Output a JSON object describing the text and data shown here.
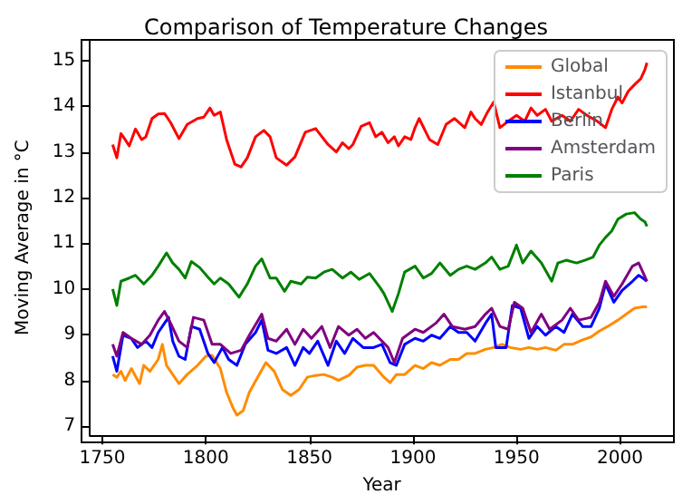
{
  "chart_data": {
    "type": "line",
    "title": "Comparison of Temperature Changes",
    "xlabel": "Year",
    "ylabel": "Moving Average in °C",
    "xlim": [
      1744,
      2026
    ],
    "xticks": [
      1750,
      1800,
      1850,
      1900,
      1950,
      2000
    ],
    "ylim": [
      6.8,
      15.45
    ],
    "yticks": [
      7,
      8,
      9,
      10,
      11,
      12,
      13,
      14,
      15
    ],
    "grid": false,
    "legend": "top right",
    "marker": "none",
    "line_style": "solid",
    "series": [
      {
        "name": "Global",
        "color": "#ff8c00",
        "x": [
          1755,
          1757,
          1759,
          1761,
          1764,
          1768,
          1770,
          1773,
          1777,
          1779,
          1781,
          1784,
          1787,
          1791,
          1796,
          1800,
          1803,
          1807,
          1810,
          1813,
          1815,
          1818,
          1821,
          1825,
          1829,
          1833,
          1837,
          1841,
          1845,
          1849,
          1853,
          1857,
          1861,
          1864,
          1869,
          1873,
          1877,
          1881,
          1886,
          1889,
          1892,
          1896,
          1901,
          1905,
          1909,
          1913,
          1918,
          1922,
          1926,
          1930,
          1935,
          1939,
          1943,
          1947,
          1952,
          1956,
          1960,
          1964,
          1969,
          1973,
          1977,
          1982,
          1986,
          1990,
          1994,
          1999,
          2003,
          2007,
          2011,
          2013
        ],
        "values": [
          8.13,
          8.07,
          8.2,
          8.0,
          8.26,
          7.93,
          8.33,
          8.2,
          8.46,
          8.79,
          8.33,
          8.13,
          7.93,
          8.13,
          8.33,
          8.53,
          8.55,
          8.26,
          7.74,
          7.41,
          7.24,
          7.34,
          7.74,
          8.07,
          8.39,
          8.2,
          7.8,
          7.67,
          7.8,
          8.07,
          8.11,
          8.13,
          8.07,
          8.0,
          8.11,
          8.29,
          8.33,
          8.33,
          8.07,
          7.95,
          8.13,
          8.13,
          8.33,
          8.26,
          8.39,
          8.33,
          8.46,
          8.46,
          8.59,
          8.59,
          8.68,
          8.72,
          8.79,
          8.72,
          8.68,
          8.72,
          8.68,
          8.72,
          8.66,
          8.79,
          8.79,
          8.89,
          8.95,
          9.08,
          9.18,
          9.32,
          9.45,
          9.58,
          9.61,
          9.61
        ]
      },
      {
        "name": "Istanbul",
        "color": "#ff0000",
        "x": [
          1755,
          1757,
          1759,
          1761,
          1763,
          1766,
          1769,
          1771,
          1774,
          1777,
          1780,
          1783,
          1787,
          1791,
          1796,
          1799,
          1802,
          1804,
          1807,
          1810,
          1814,
          1817,
          1820,
          1824,
          1828,
          1831,
          1834,
          1839,
          1843,
          1848,
          1853,
          1859,
          1863,
          1866,
          1869,
          1871,
          1875,
          1879,
          1882,
          1885,
          1888,
          1891,
          1893,
          1896,
          1899,
          1901,
          1903,
          1908,
          1912,
          1916,
          1920,
          1925,
          1928,
          1930,
          1933,
          1936,
          1939,
          1942,
          1946,
          1950,
          1954,
          1957,
          1960,
          1964,
          1967,
          1972,
          1976,
          1980,
          1984,
          1989,
          1993,
          1996,
          1999,
          2001,
          2004,
          2007,
          2010,
          2012,
          2013
        ],
        "values": [
          13.16,
          12.87,
          13.4,
          13.27,
          13.13,
          13.5,
          13.27,
          13.33,
          13.73,
          13.83,
          13.84,
          13.64,
          13.29,
          13.6,
          13.73,
          13.76,
          13.96,
          13.8,
          13.87,
          13.27,
          12.73,
          12.67,
          12.87,
          13.33,
          13.47,
          13.33,
          12.87,
          12.71,
          12.89,
          13.43,
          13.51,
          13.16,
          13.0,
          13.2,
          13.07,
          13.16,
          13.56,
          13.64,
          13.33,
          13.43,
          13.2,
          13.33,
          13.13,
          13.33,
          13.27,
          13.53,
          13.73,
          13.27,
          13.16,
          13.6,
          13.73,
          13.53,
          13.87,
          13.73,
          13.6,
          13.87,
          14.09,
          13.53,
          13.67,
          13.8,
          13.67,
          13.96,
          13.8,
          13.93,
          13.67,
          13.8,
          13.67,
          13.93,
          13.8,
          13.67,
          13.53,
          13.93,
          14.2,
          14.07,
          14.33,
          14.47,
          14.6,
          14.8,
          14.95
        ]
      },
      {
        "name": "Berlin",
        "color": "#0000ff",
        "x": [
          1755,
          1757,
          1760,
          1764,
          1767,
          1771,
          1774,
          1777,
          1780,
          1782,
          1784,
          1787,
          1790,
          1793,
          1797,
          1801,
          1804,
          1808,
          1811,
          1815,
          1819,
          1824,
          1827,
          1830,
          1834,
          1839,
          1843,
          1847,
          1850,
          1854,
          1859,
          1863,
          1867,
          1871,
          1876,
          1881,
          1885,
          1889,
          1892,
          1896,
          1901,
          1905,
          1909,
          1913,
          1918,
          1922,
          1926,
          1930,
          1935,
          1938,
          1940,
          1945,
          1948,
          1952,
          1956,
          1960,
          1964,
          1969,
          1973,
          1977,
          1982,
          1986,
          1990,
          1993,
          1997,
          2001,
          2006,
          2009,
          2011,
          2013
        ],
        "values": [
          8.53,
          8.2,
          8.99,
          8.92,
          8.72,
          8.86,
          8.72,
          9.05,
          9.25,
          9.38,
          8.86,
          8.53,
          8.46,
          9.18,
          9.12,
          8.59,
          8.39,
          8.72,
          8.46,
          8.33,
          8.79,
          9.05,
          9.32,
          8.66,
          8.59,
          8.72,
          8.33,
          8.72,
          8.59,
          8.86,
          8.33,
          8.86,
          8.59,
          8.92,
          8.72,
          8.72,
          8.79,
          8.39,
          8.33,
          8.79,
          8.92,
          8.86,
          8.99,
          8.92,
          9.18,
          9.05,
          9.05,
          8.86,
          9.25,
          9.45,
          8.72,
          8.72,
          9.64,
          9.58,
          8.92,
          9.18,
          8.99,
          9.18,
          9.05,
          9.45,
          9.18,
          9.18,
          9.58,
          10.11,
          9.71,
          9.97,
          10.17,
          10.3,
          10.24,
          10.17
        ]
      },
      {
        "name": "Amsterdam",
        "color": "#800080",
        "x": [
          1755,
          1757,
          1760,
          1764,
          1769,
          1773,
          1777,
          1780,
          1783,
          1787,
          1791,
          1794,
          1799,
          1803,
          1807,
          1812,
          1817,
          1821,
          1827,
          1830,
          1834,
          1839,
          1843,
          1847,
          1851,
          1856,
          1860,
          1864,
          1869,
          1873,
          1877,
          1881,
          1888,
          1891,
          1895,
          1901,
          1905,
          1911,
          1915,
          1919,
          1925,
          1930,
          1935,
          1938,
          1942,
          1946,
          1949,
          1953,
          1957,
          1962,
          1966,
          1972,
          1976,
          1980,
          1986,
          1990,
          1993,
          1997,
          2001,
          2006,
          2009,
          2011,
          2013
        ],
        "values": [
          8.79,
          8.53,
          9.05,
          8.92,
          8.79,
          8.99,
          9.32,
          9.51,
          9.25,
          8.86,
          8.72,
          9.38,
          9.32,
          8.79,
          8.79,
          8.59,
          8.66,
          8.99,
          9.45,
          8.92,
          8.86,
          9.12,
          8.79,
          9.12,
          8.92,
          9.18,
          8.72,
          9.18,
          8.99,
          9.12,
          8.92,
          9.05,
          8.72,
          8.39,
          8.92,
          9.12,
          9.05,
          9.25,
          9.45,
          9.18,
          9.12,
          9.18,
          9.45,
          9.58,
          9.18,
          9.12,
          9.71,
          9.58,
          9.05,
          9.45,
          9.12,
          9.32,
          9.58,
          9.32,
          9.38,
          9.71,
          10.17,
          9.84,
          10.11,
          10.5,
          10.57,
          10.37,
          10.17
        ]
      },
      {
        "name": "Paris",
        "color": "#008000",
        "x": [
          1755,
          1757,
          1759,
          1763,
          1766,
          1770,
          1774,
          1777,
          1781,
          1784,
          1787,
          1790,
          1793,
          1797,
          1801,
          1804,
          1807,
          1811,
          1816,
          1820,
          1824,
          1827,
          1831,
          1834,
          1838,
          1841,
          1846,
          1849,
          1853,
          1857,
          1861,
          1866,
          1870,
          1874,
          1879,
          1884,
          1886,
          1890,
          1893,
          1896,
          1901,
          1905,
          1909,
          1913,
          1918,
          1922,
          1926,
          1930,
          1935,
          1938,
          1942,
          1946,
          1950,
          1953,
          1957,
          1962,
          1967,
          1970,
          1974,
          1979,
          1983,
          1987,
          1990,
          1993,
          1996,
          1999,
          2003,
          2007,
          2010,
          2012,
          2013
        ],
        "values": [
          10.0,
          9.64,
          10.17,
          10.24,
          10.3,
          10.11,
          10.3,
          10.5,
          10.79,
          10.57,
          10.43,
          10.24,
          10.6,
          10.47,
          10.26,
          10.11,
          10.24,
          10.11,
          9.82,
          10.11,
          10.5,
          10.66,
          10.24,
          10.24,
          9.95,
          10.17,
          10.11,
          10.26,
          10.24,
          10.37,
          10.43,
          10.24,
          10.37,
          10.21,
          10.34,
          10.04,
          9.9,
          9.51,
          9.9,
          10.37,
          10.5,
          10.24,
          10.34,
          10.57,
          10.3,
          10.43,
          10.5,
          10.43,
          10.57,
          10.7,
          10.43,
          10.5,
          10.96,
          10.57,
          10.83,
          10.57,
          10.17,
          10.57,
          10.63,
          10.57,
          10.63,
          10.7,
          10.96,
          11.13,
          11.27,
          11.53,
          11.64,
          11.67,
          11.53,
          11.47,
          11.37
        ]
      }
    ]
  }
}
